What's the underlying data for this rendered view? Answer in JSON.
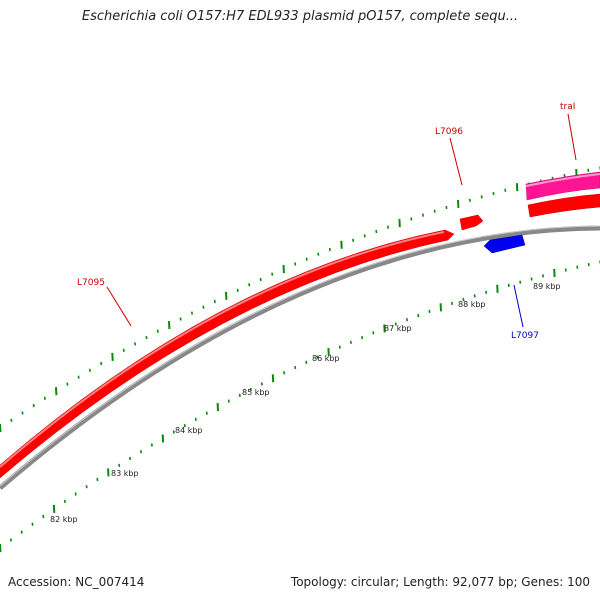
{
  "title": "Escherichia coli O157:H7 EDL933 plasmid pO157, complete sequ...",
  "footer": {
    "accession": "Accession: NC_007414",
    "summary": "Topology: circular; Length: 92,077 bp; Genes: 100"
  },
  "colors": {
    "forward_gene": "#ff0000",
    "reverse_gene": "#0000ee",
    "tra_gene": "#ff1493",
    "backbone": "#888888",
    "ticks": "#0a8a0a",
    "forward_label": "#cc0000",
    "reverse_label": "#0000cc"
  },
  "ticks": [
    {
      "label": "82 kbp"
    },
    {
      "label": "83 kbp"
    },
    {
      "label": "84 kbp"
    },
    {
      "label": "85 kbp"
    },
    {
      "label": "86 kbp"
    },
    {
      "label": "87 kbp"
    },
    {
      "label": "88 kbp"
    },
    {
      "label": "89 kbp"
    }
  ],
  "genes": [
    {
      "name": "L7095",
      "strand": "forward"
    },
    {
      "name": "L7096",
      "strand": "forward"
    },
    {
      "name": "L7097",
      "strand": "reverse"
    },
    {
      "name": "traI",
      "strand": "forward"
    }
  ]
}
